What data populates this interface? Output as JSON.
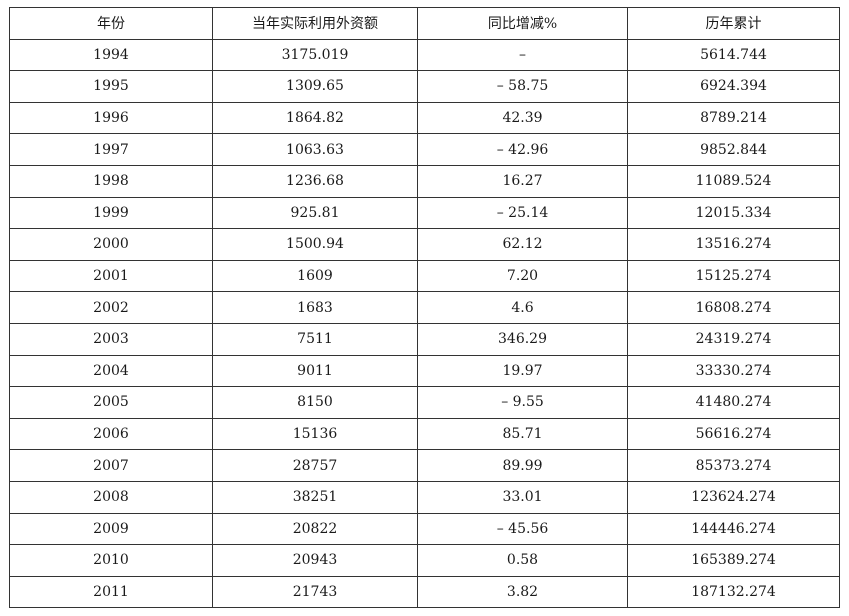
{
  "table": {
    "headers": [
      "年份",
      "当年实际利用外资额",
      "同比增减%",
      "历年累计"
    ],
    "rows": [
      [
        "1994",
        "3175.019",
        "–",
        "5614.744"
      ],
      [
        "1995",
        "1309.65",
        "– 58.75",
        "6924.394"
      ],
      [
        "1996",
        "1864.82",
        "42.39",
        "8789.214"
      ],
      [
        "1997",
        "1063.63",
        "– 42.96",
        "9852.844"
      ],
      [
        "1998",
        "1236.68",
        "16.27",
        "11089.524"
      ],
      [
        "1999",
        "925.81",
        "– 25.14",
        "12015.334"
      ],
      [
        "2000",
        "1500.94",
        "62.12",
        "13516.274"
      ],
      [
        "2001",
        "1609",
        "7.20",
        "15125.274"
      ],
      [
        "2002",
        "1683",
        "4.6",
        "16808.274"
      ],
      [
        "2003",
        "7511",
        "346.29",
        "24319.274"
      ],
      [
        "2004",
        "9011",
        "19.97",
        "33330.274"
      ],
      [
        "2005",
        "8150",
        "– 9.55",
        "41480.274"
      ],
      [
        "2006",
        "15136",
        "85.71",
        "56616.274"
      ],
      [
        "2007",
        "28757",
        "89.99",
        "85373.274"
      ],
      [
        "2008",
        "38251",
        "33.01",
        "123624.274"
      ],
      [
        "2009",
        "20822",
        "– 45.56",
        "144446.274"
      ],
      [
        "2010",
        "20943",
        "0.58",
        "165389.274"
      ],
      [
        "2011",
        "21743",
        "3.82",
        "187132.274"
      ]
    ]
  }
}
